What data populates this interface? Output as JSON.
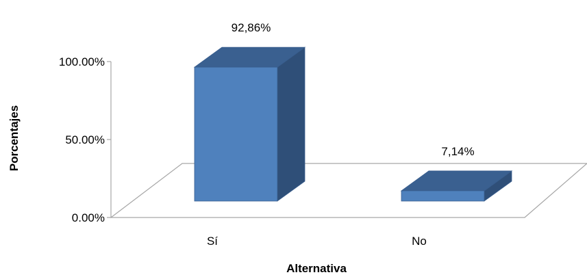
{
  "chart_data": {
    "type": "bar",
    "categories": [
      "Sí",
      "No"
    ],
    "values": [
      92.86,
      7.14
    ],
    "data_labels": [
      "92,86%",
      "7,14%"
    ],
    "ylim": [
      0,
      100
    ],
    "yticks": [
      0,
      50,
      100
    ],
    "ytick_labels": [
      "0.00%",
      "50.00%",
      "100.00%"
    ],
    "xlabel": "Alternativa",
    "ylabel": "Porcentajes",
    "title": "",
    "legend": false,
    "grid": false,
    "colors": {
      "front": "#4F81BD",
      "top": "#3A6090",
      "side": "#2F4F78",
      "edge": "#395E8E",
      "floor": "#A6A6A6"
    }
  }
}
